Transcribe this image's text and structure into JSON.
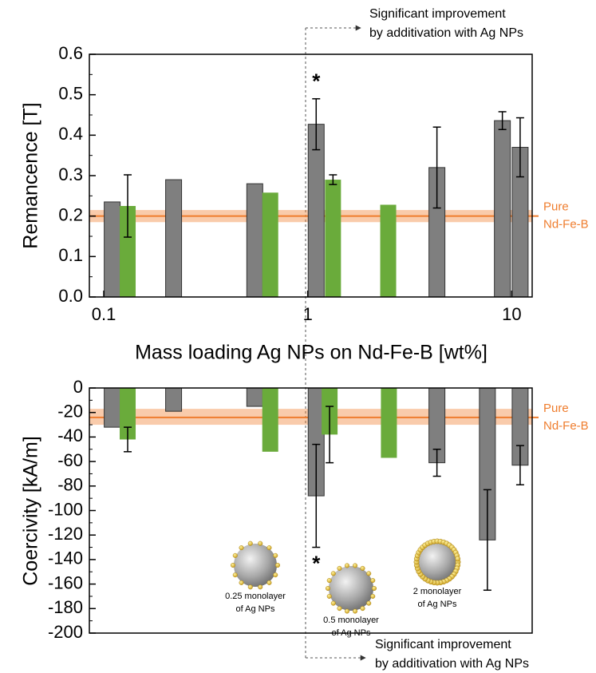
{
  "chart_data": [
    {
      "type": "bar",
      "x_label": "Mass loading Ag NPs on Nd-Fe-B [wt%]",
      "y_label": "Remancence [T]",
      "xscale": "log",
      "xlim": [
        0.085,
        12.6
      ],
      "xticks": [
        0.1,
        1,
        10
      ],
      "ylim": [
        0,
        0.6
      ],
      "yticks": [
        {
          "value": 0,
          "label": "0.0"
        },
        {
          "value": 0.1,
          "label": "0.1"
        },
        {
          "value": 0.2,
          "label": "0.2"
        },
        {
          "value": 0.3,
          "label": "0.3"
        },
        {
          "value": 0.4,
          "label": "0.4"
        },
        {
          "value": 0.5,
          "label": "0.5"
        },
        {
          "value": 0.6,
          "label": "0.6"
        }
      ],
      "series": [
        {
          "color": "#7f7f7f",
          "x": [
            0.11,
            0.22,
            0.55,
            1.1,
            4.3,
            9.0,
            11
          ],
          "values": [
            0.235,
            0.29,
            0.28,
            0.427,
            0.32,
            0.436,
            0.37
          ],
          "errors": [
            null,
            null,
            null,
            0.063,
            0.1,
            0.022,
            0.073
          ]
        },
        {
          "color": "#6aab3b",
          "x": [
            0.131,
            0.655,
            1.33,
            2.48
          ],
          "values": [
            0.225,
            0.258,
            0.29,
            0.228
          ],
          "errors": [
            0.077,
            null,
            0.012,
            null
          ]
        }
      ],
      "reference": {
        "label": [
          "Pure",
          "Nd-Fe-B"
        ],
        "value": 0.2,
        "band": [
          0.185,
          0.215
        ],
        "color": "#ef7d2e"
      },
      "annotations": [
        "*"
      ],
      "note": [
        "Significant improvement",
        "by additivation with Ag NPs"
      ]
    },
    {
      "type": "bar",
      "y_label": "Coercivity [kA/m]",
      "xscale": "log",
      "xlim": [
        0.085,
        12.6
      ],
      "ylim": [
        -200,
        0
      ],
      "yticks": [
        -200,
        -180,
        -160,
        -140,
        -120,
        -100,
        -80,
        -60,
        -40,
        -20,
        0
      ],
      "series": [
        {
          "color": "#7f7f7f",
          "x": [
            0.11,
            0.22,
            0.55,
            1.1,
            4.3,
            7.6,
            11
          ],
          "values": [
            -32,
            -19,
            -15,
            -88,
            -61,
            -124,
            -63
          ],
          "errors": [
            null,
            null,
            null,
            42,
            11,
            41,
            16
          ]
        },
        {
          "color": "#6aab3b",
          "x": [
            0.131,
            0.655,
            1.28,
            2.5
          ],
          "values": [
            -42,
            -52,
            -38,
            -57
          ],
          "errors": [
            10,
            null,
            23,
            null
          ]
        }
      ],
      "reference": {
        "label": [
          "Pure",
          "Nd-Fe-B"
        ],
        "value": -24,
        "band": [
          -30,
          -17
        ],
        "color": "#ef7d2e"
      },
      "annotations": [
        "*"
      ],
      "particle_labels": [
        [
          "0.25 monolayer",
          "of Ag NPs"
        ],
        [
          "0.5 monolayer",
          "of Ag NPs"
        ],
        [
          "2 monolayer",
          "of Ag NPs"
        ]
      ],
      "note": [
        "Significant improvement",
        "by additivation with Ag NPs"
      ]
    }
  ]
}
